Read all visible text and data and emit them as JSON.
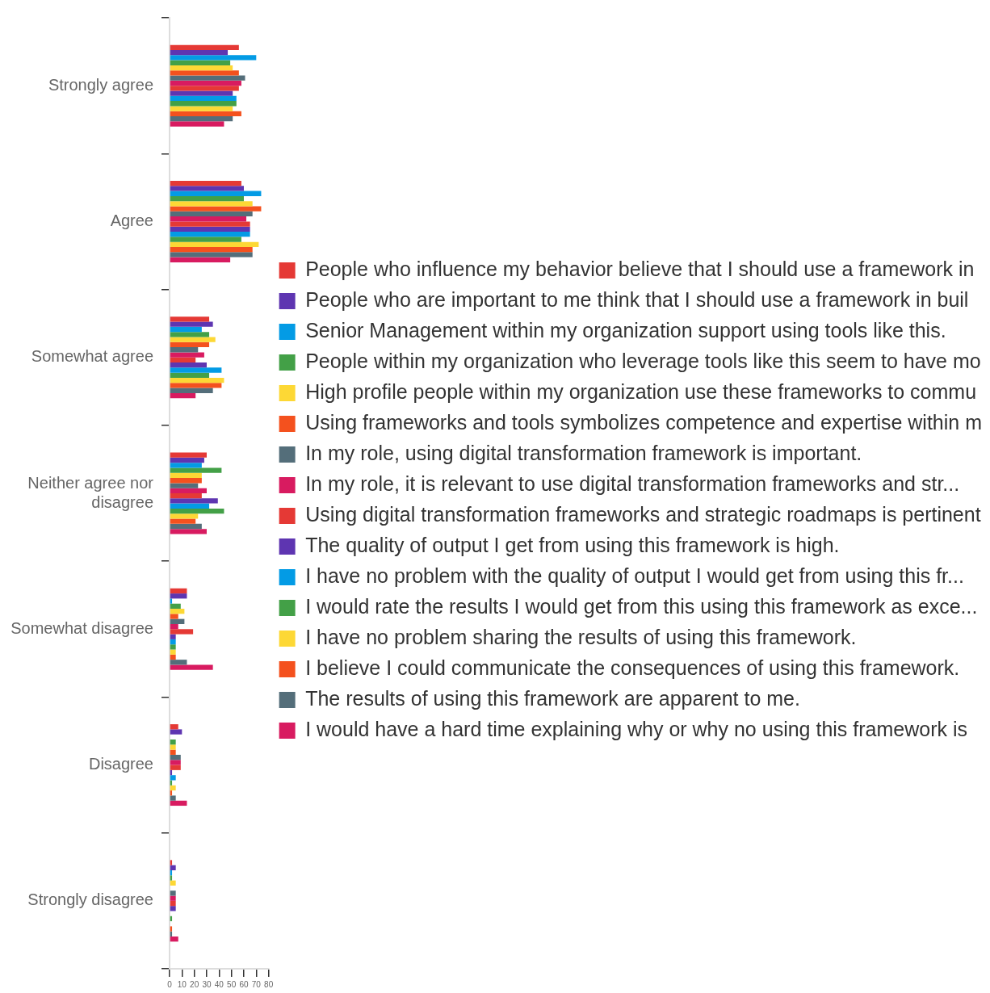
{
  "chart_data": {
    "type": "bar",
    "orientation": "horizontal",
    "legend": "right",
    "categories": [
      "Strongly agree",
      "Agree",
      "Somewhat agree",
      "Neither agree nor disagree",
      "Somewhat disagree",
      "Disagree",
      "Strongly disagree"
    ],
    "xlim": [
      0,
      80
    ],
    "xticks": [
      0,
      10,
      20,
      30,
      40,
      50,
      60,
      70,
      80
    ],
    "series": [
      {
        "name": "People who influence my behavior believe that I should use a framework in",
        "color": "#e53935",
        "values": [
          56,
          58,
          32,
          30,
          14,
          7,
          2
        ]
      },
      {
        "name": "People who are important to me think that I should use a framework in buil",
        "color": "#5e35b1",
        "values": [
          47,
          60,
          35,
          28,
          14,
          10,
          5
        ]
      },
      {
        "name": "Senior Management within my organization support using tools like this.",
        "color": "#039be5",
        "values": [
          70,
          74,
          26,
          26,
          2,
          0,
          2
        ]
      },
      {
        "name": "People within my organization who leverage tools like this seem to have mo",
        "color": "#43a047",
        "values": [
          49,
          60,
          32,
          42,
          9,
          5,
          2
        ]
      },
      {
        "name": "High profile people within my organization use these frameworks to commu",
        "color": "#fdd835",
        "values": [
          51,
          67,
          37,
          26,
          12,
          5,
          5
        ]
      },
      {
        "name": "Using frameworks and tools symbolizes competence and expertise within m",
        "color": "#f4511e",
        "values": [
          56,
          74,
          32,
          26,
          7,
          5,
          0
        ]
      },
      {
        "name": "In my role, using digital transformation framework is important.",
        "color": "#546e7a",
        "values": [
          61,
          67,
          23,
          23,
          12,
          9,
          5
        ]
      },
      {
        "name": "In my role, it is relevant to use digital transformation frameworks and str...",
        "color": "#d81b60",
        "values": [
          58,
          62,
          28,
          30,
          7,
          9,
          5
        ]
      },
      {
        "name": "Using digital transformation frameworks and strategic roadmaps is pertinent",
        "color": "#e53935",
        "values": [
          56,
          65,
          21,
          26,
          19,
          9,
          5
        ]
      },
      {
        "name": "The quality of output I get from using this framework is high.",
        "color": "#5e35b1",
        "values": [
          51,
          65,
          30,
          39,
          5,
          2,
          5
        ]
      },
      {
        "name": "I have no problem with the quality of output I would get from using this fr...",
        "color": "#039be5",
        "values": [
          54,
          65,
          42,
          32,
          5,
          5,
          0
        ]
      },
      {
        "name": "I would rate the results I would get from this using this framework as exce...",
        "color": "#43a047",
        "values": [
          54,
          58,
          32,
          44,
          5,
          2,
          2
        ]
      },
      {
        "name": "I have no problem sharing the results of using this framework.",
        "color": "#fdd835",
        "values": [
          51,
          72,
          44,
          23,
          5,
          5,
          0
        ]
      },
      {
        "name": "I believe I could communicate the consequences of using this framework.",
        "color": "#f4511e",
        "values": [
          58,
          67,
          42,
          21,
          5,
          2,
          2
        ]
      },
      {
        "name": "The results of using this framework are apparent to me.",
        "color": "#546e7a",
        "values": [
          51,
          67,
          35,
          26,
          14,
          5,
          2
        ]
      },
      {
        "name": "I would have a hard time explaining why or why no using this framework is",
        "color": "#d81b60",
        "values": [
          44,
          49,
          21,
          30,
          35,
          14,
          7
        ]
      }
    ]
  }
}
